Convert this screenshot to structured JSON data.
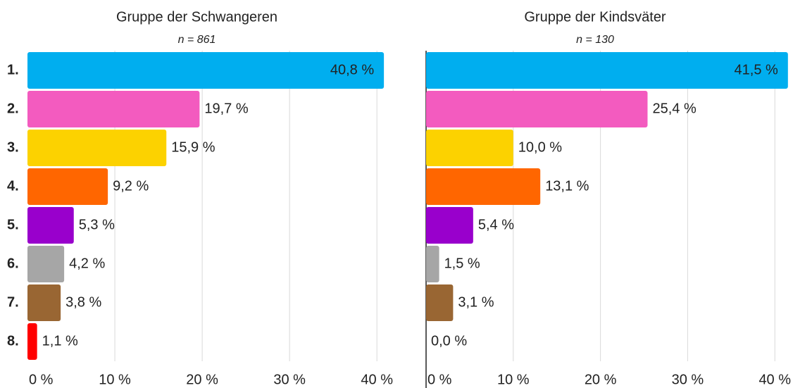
{
  "chart_data": [
    {
      "type": "bar",
      "orientation": "horizontal",
      "title": "Gruppe der Schwangeren",
      "subtitle": "n = 861",
      "categories": [
        "1.",
        "2.",
        "3.",
        "4.",
        "5.",
        "6.",
        "7.",
        "8."
      ],
      "values": [
        40.8,
        19.7,
        15.9,
        9.2,
        5.3,
        4.2,
        3.8,
        1.1
      ],
      "value_labels": [
        "40,8 %",
        "19,7 %",
        "15,9 %",
        "9,2 %",
        "5,3 %",
        "4,2 %",
        "3,8 %",
        "1,1 %"
      ],
      "colors": [
        "#00aeef",
        "#f35bbf",
        "#fcd200",
        "#ff6600",
        "#9900cc",
        "#a6a6a6",
        "#996633",
        "#ff0000"
      ],
      "xlim": [
        0,
        42
      ],
      "xticks": [
        {
          "value": 0,
          "label": "0 %"
        },
        {
          "value": 10,
          "label": "10 %"
        },
        {
          "value": 20,
          "label": "20 %"
        },
        {
          "value": 30,
          "label": "30 %"
        },
        {
          "value": 40,
          "label": "40 %"
        }
      ],
      "grid": true,
      "axis_line": false
    },
    {
      "type": "bar",
      "orientation": "horizontal",
      "title": "Gruppe der Kindsväter",
      "subtitle": "n = 130",
      "values": [
        41.5,
        25.4,
        10.0,
        13.1,
        5.4,
        1.5,
        3.1,
        0.0
      ],
      "value_labels": [
        "41,5 %",
        "25,4 %",
        "10,0 %",
        "13,1 %",
        "5,4 %",
        "1,5 %",
        "3,1 %",
        "0,0 %"
      ],
      "colors": [
        "#00aeef",
        "#f35bbf",
        "#fcd200",
        "#ff6600",
        "#9900cc",
        "#a6a6a6",
        "#996633",
        "#ff0000"
      ],
      "xlim": [
        0,
        42
      ],
      "xticks": [
        {
          "value": 0,
          "label": "0 %"
        },
        {
          "value": 10,
          "label": "10 %"
        },
        {
          "value": 20,
          "label": "20 %"
        },
        {
          "value": 30,
          "label": "30 %"
        },
        {
          "value": 40,
          "label": "40 %"
        }
      ],
      "grid": true,
      "axis_line": true
    }
  ]
}
